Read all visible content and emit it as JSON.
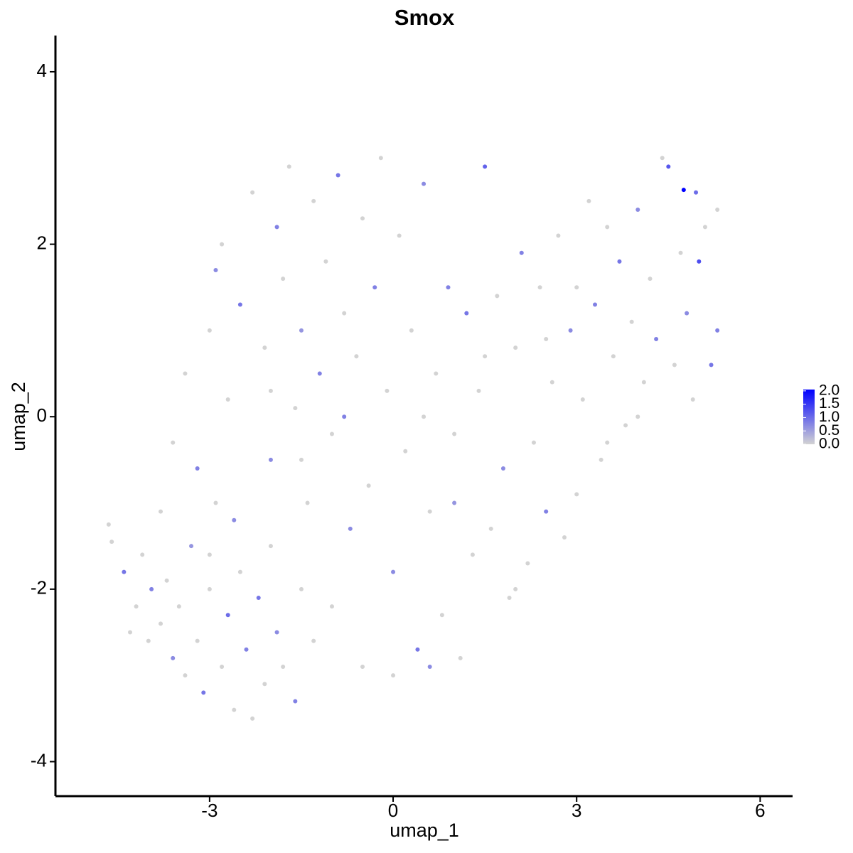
{
  "chart_data": {
    "type": "scatter",
    "title": "Smox",
    "x_label": "umap_1",
    "y_label": "umap_2",
    "xlim": [
      -5.52,
      6.53
    ],
    "ylim": [
      -4.4,
      4.42
    ],
    "xticks": [
      -3,
      0,
      3,
      6
    ],
    "yticks": [
      -4,
      -2,
      0,
      2,
      4
    ],
    "low_color": "#d3d3d3",
    "high_color": "#0000ff",
    "colorlim": [
      0,
      2.05
    ],
    "colorticks": [
      {
        "value": 0,
        "label": "0.0"
      },
      {
        "value": 0.5,
        "label": "0.5"
      },
      {
        "value": 1,
        "label": "1.0"
      },
      {
        "value": 1.5,
        "label": "1.5"
      },
      {
        "value": 2,
        "label": "2.0"
      }
    ],
    "x": [
      -4.65,
      -4.6,
      -4.4,
      -4.2,
      -4.1,
      -4.0,
      -3.95,
      -3.8,
      -3.7,
      -3.6,
      -3.5,
      -3.4,
      -3.3,
      -3.2,
      -3.1,
      -3.0,
      -2.9,
      -2.8,
      -2.7,
      -2.6,
      -2.5,
      -2.4,
      -2.3,
      -2.2,
      -2.1,
      -2.0,
      -1.9,
      -1.8,
      -1.6,
      -1.5,
      -1.3,
      -3.6,
      -3.4,
      -3.2,
      -3.0,
      -2.9,
      -2.8,
      -2.7,
      -2.5,
      -2.3,
      -2.1,
      -2.0,
      -1.9,
      -1.8,
      -1.7,
      -1.6,
      -1.5,
      -1.4,
      -1.3,
      -1.2,
      -1.1,
      -1.0,
      -0.9,
      -0.8,
      -0.7,
      -0.6,
      -0.5,
      -0.4,
      -0.3,
      -0.2,
      -0.1,
      0.0,
      0.1,
      0.2,
      0.3,
      0.4,
      0.5,
      0.6,
      0.7,
      0.8,
      0.9,
      1.0,
      1.1,
      1.2,
      1.3,
      1.4,
      1.5,
      1.6,
      1.7,
      1.8,
      1.9,
      2.0,
      2.1,
      2.2,
      2.3,
      2.4,
      2.5,
      2.6,
      2.7,
      2.8,
      2.9,
      3.0,
      3.1,
      3.2,
      3.3,
      3.4,
      3.5,
      3.6,
      3.7,
      3.8,
      3.9,
      4.0,
      4.1,
      4.2,
      4.3,
      4.4,
      4.5,
      4.6,
      4.7,
      4.75,
      4.8,
      4.9,
      5.0,
      5.1,
      5.2,
      5.3,
      5.3,
      4.95,
      -0.5,
      0.0,
      0.6,
      -1.0,
      -3.8,
      -4.3,
      -2.0,
      0.5,
      1.0,
      2.0,
      3.5,
      4.0,
      -1.5,
      -0.8,
      1.5,
      2.5,
      3.0,
      -2.6,
      -3.0
    ],
    "y": [
      -1.25,
      -1.45,
      -1.8,
      -2.2,
      -1.6,
      -2.6,
      -2.0,
      -2.4,
      -1.9,
      -2.8,
      -2.2,
      -3.0,
      -1.5,
      -2.6,
      -3.2,
      -2.0,
      -1.0,
      -2.9,
      -2.3,
      -3.4,
      -1.8,
      -2.7,
      -3.5,
      -2.1,
      -3.1,
      -1.5,
      -2.5,
      -2.9,
      -3.3,
      -2.0,
      -2.6,
      -0.3,
      0.5,
      -0.6,
      1.0,
      1.7,
      2.0,
      0.2,
      1.3,
      2.6,
      0.8,
      -0.5,
      2.2,
      1.6,
      2.9,
      0.1,
      1.0,
      -1.0,
      2.5,
      0.5,
      1.8,
      -0.2,
      2.8,
      1.2,
      -1.3,
      0.7,
      2.3,
      -0.8,
      1.5,
      3.0,
      0.3,
      -1.8,
      2.1,
      -0.4,
      1.0,
      -2.7,
      2.7,
      -1.1,
      0.5,
      -2.3,
      1.5,
      -0.2,
      -2.8,
      1.2,
      -1.6,
      0.3,
      2.9,
      -1.3,
      1.4,
      -0.6,
      -2.1,
      0.8,
      1.9,
      -1.7,
      -0.3,
      1.5,
      -1.1,
      0.4,
      2.1,
      -1.4,
      1.0,
      -0.9,
      0.2,
      2.5,
      1.3,
      -0.5,
      2.2,
      0.7,
      1.8,
      -0.1,
      1.1,
      2.4,
      0.4,
      1.6,
      0.9,
      3.0,
      2.9,
      0.6,
      1.9,
      2.63,
      1.2,
      0.2,
      1.8,
      2.2,
      0.6,
      2.4,
      1.0,
      2.6,
      -2.9,
      -3.0,
      -2.9,
      -2.2,
      -1.1,
      -2.5,
      0.3,
      0.0,
      -1.0,
      -2.0,
      -0.3,
      0.0,
      -0.5,
      0.0,
      0.7,
      0.9,
      1.5,
      -1.2,
      -1.6
    ],
    "values": [
      0,
      0,
      0.9,
      0,
      0,
      0,
      0.8,
      0,
      0,
      0.7,
      0,
      0,
      0.6,
      0,
      0.9,
      0,
      0,
      0,
      1.0,
      0,
      0,
      0.8,
      0,
      0.9,
      0,
      0,
      0.7,
      0,
      0.8,
      0,
      0,
      0,
      0,
      0.8,
      0,
      0.7,
      0,
      0,
      0.9,
      0,
      0,
      0.7,
      0.8,
      0,
      0,
      0,
      0.6,
      0,
      0,
      0.8,
      0,
      0,
      0.9,
      0,
      0.7,
      0,
      0,
      0,
      0.8,
      0,
      0,
      0.7,
      0,
      0,
      0,
      0.9,
      0.7,
      0,
      0,
      0,
      0.8,
      0,
      0,
      0.9,
      0,
      0,
      1.1,
      0,
      0,
      0.7,
      0,
      0,
      0.8,
      0,
      0,
      0,
      0.8,
      0,
      0,
      0,
      0.7,
      0,
      0,
      0,
      0.8,
      0,
      0,
      0,
      0.9,
      0,
      0,
      0.7,
      0,
      0,
      0.8,
      0,
      1.2,
      0,
      0,
      2.05,
      0.7,
      0,
      1.3,
      0,
      0.9,
      0,
      0.8,
      1.0,
      0,
      0,
      0.7,
      0,
      0,
      0,
      0,
      0,
      0.6,
      0,
      0,
      0,
      0,
      0.8,
      0,
      0,
      0,
      0.7,
      0
    ]
  }
}
